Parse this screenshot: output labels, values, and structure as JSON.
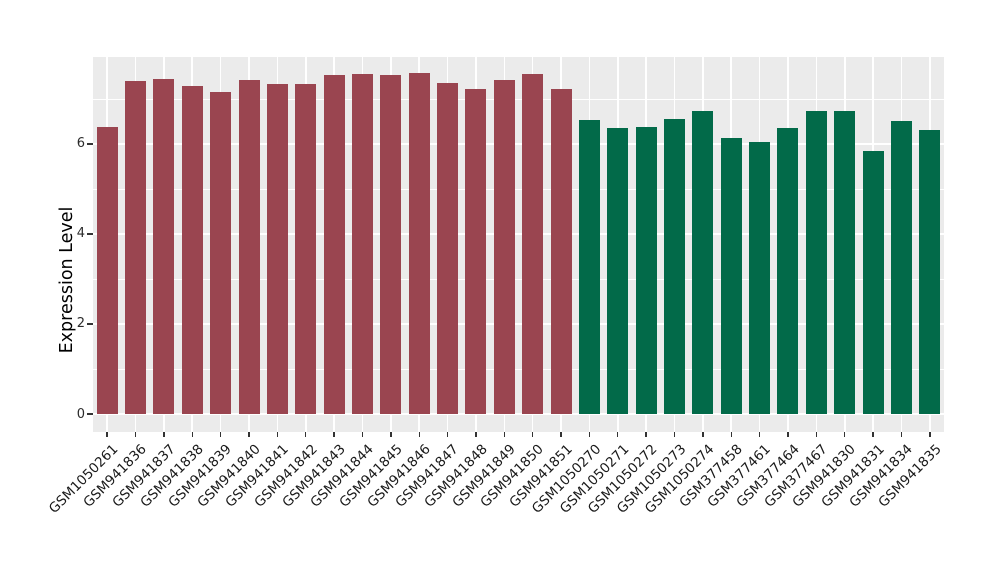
{
  "chart_data": {
    "type": "bar",
    "title": "",
    "xlabel": "",
    "ylabel": "Expression Level",
    "ylim": [
      0,
      7.93
    ],
    "yticks_major": [
      0,
      2,
      4,
      6
    ],
    "yticks_minor": [
      1,
      3,
      5,
      7
    ],
    "grid": true,
    "legend": "none",
    "categories": [
      "GSM1050261",
      "GSM941836",
      "GSM941837",
      "GSM941838",
      "GSM941839",
      "GSM941840",
      "GSM941841",
      "GSM941842",
      "GSM941843",
      "GSM941844",
      "GSM941845",
      "GSM941846",
      "GSM941847",
      "GSM941848",
      "GSM941849",
      "GSM941850",
      "GSM941851",
      "GSM1050270",
      "GSM1050271",
      "GSM1050272",
      "GSM1050273",
      "GSM1050274",
      "GSM377458",
      "GSM377461",
      "GSM377464",
      "GSM377467",
      "GSM941830",
      "GSM941831",
      "GSM941834",
      "GSM941835"
    ],
    "values": [
      6.38,
      7.39,
      7.45,
      7.29,
      7.15,
      7.42,
      7.32,
      7.34,
      7.52,
      7.56,
      7.54,
      7.57,
      7.36,
      7.21,
      7.41,
      7.56,
      7.22,
      6.53,
      6.35,
      6.38,
      6.56,
      6.74,
      6.13,
      6.04,
      6.35,
      6.73,
      6.73,
      5.85,
      6.51,
      6.31
    ],
    "color_groups": [
      {
        "color": "#9A4550",
        "from": 0,
        "to": 16
      },
      {
        "color": "#026A49",
        "from": 17,
        "to": 29
      }
    ]
  },
  "style": {
    "panel_bg": "#EBEBEB",
    "grid_color": "#FFFFFF",
    "tick_color": "#333333",
    "text_color": "#1A1A1A",
    "axis_title_color": "#000000"
  }
}
